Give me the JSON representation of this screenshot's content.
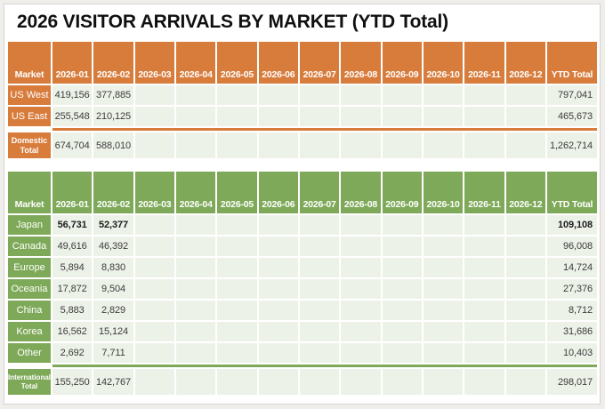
{
  "title": "2026 VISITOR ARRIVALS BY MARKET (YTD Total)",
  "colors": {
    "domestic_accent": "#d87c3c",
    "international_accent": "#7ea958",
    "cell_background": "#edf2e8",
    "header_text": "#ffffff",
    "value_text": "#3c3c3c"
  },
  "chart_data": [
    {
      "type": "table",
      "name": "domestic-markets",
      "accent": "#d87c3c",
      "header": [
        "Market",
        "2026-01",
        "2026-02",
        "2026-03",
        "2026-04",
        "2026-05",
        "2026-06",
        "2026-07",
        "2026-08",
        "2026-09",
        "2026-10",
        "2026-11",
        "2026-12",
        "YTD Total"
      ],
      "rows": [
        {
          "market": "US West",
          "m01": "419,156",
          "m02": "377,885",
          "ytd": "797,041"
        },
        {
          "market": "US East",
          "m01": "255,548",
          "m02": "210,125",
          "ytd": "465,673"
        }
      ],
      "total": {
        "market": "Domestic Total",
        "m01": "674,704",
        "m02": "588,010",
        "ytd": "1,262,714"
      }
    },
    {
      "type": "table",
      "name": "international-markets",
      "accent": "#7ea958",
      "header": [
        "Market",
        "2026-01",
        "2026-02",
        "2026-03",
        "2026-04",
        "2026-05",
        "2026-06",
        "2026-07",
        "2026-08",
        "2026-09",
        "2026-10",
        "2026-11",
        "2026-12",
        "YTD Total"
      ],
      "rows": [
        {
          "market": "Japan",
          "m01": "56,731",
          "m02": "52,377",
          "ytd": "109,108"
        },
        {
          "market": "Canada",
          "m01": "49,616",
          "m02": "46,392",
          "ytd": "96,008"
        },
        {
          "market": "Europe",
          "m01": "5,894",
          "m02": "8,830",
          "ytd": "14,724"
        },
        {
          "market": "Oceania",
          "m01": "17,872",
          "m02": "9,504",
          "ytd": "27,376"
        },
        {
          "market": "China",
          "m01": "5,883",
          "m02": "2,829",
          "ytd": "8,712"
        },
        {
          "market": "Korea",
          "m01": "16,562",
          "m02": "15,124",
          "ytd": "31,686"
        },
        {
          "market": "Other",
          "m01": "2,692",
          "m02": "7,711",
          "ytd": "10,403"
        }
      ],
      "total": {
        "market": "International Total",
        "m01": "155,250",
        "m02": "142,767",
        "ytd": "298,017"
      }
    }
  ]
}
